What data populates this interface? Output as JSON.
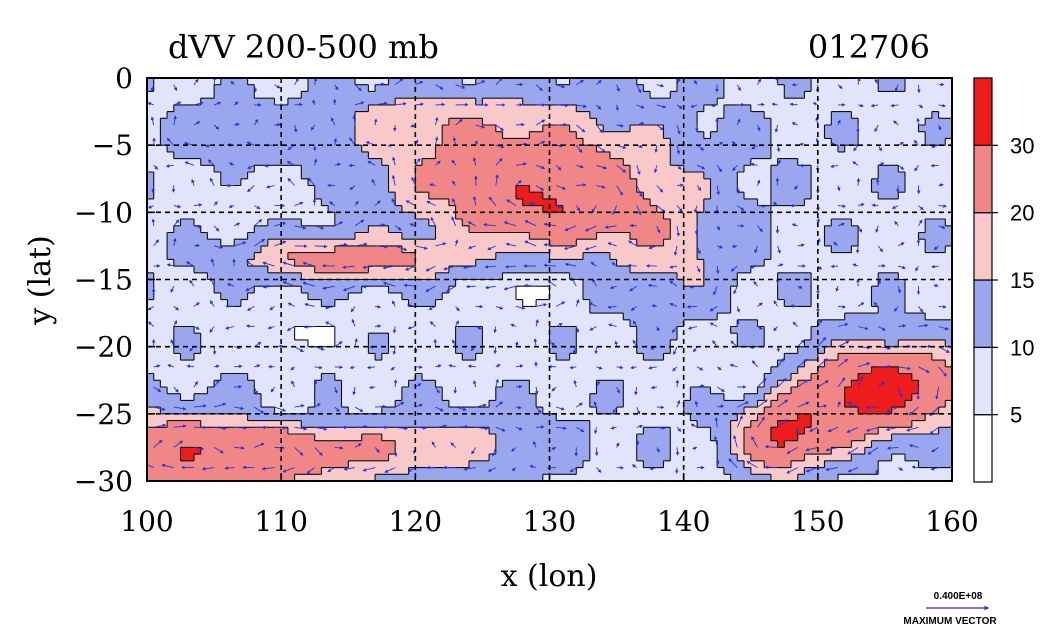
{
  "header": {
    "title": "dVV 200-500 mb",
    "date_code": "012706"
  },
  "chart_data": {
    "type": "heatmap",
    "xlabel": "x (lon)",
    "ylabel": "y (lat)",
    "xlim": [
      100,
      160
    ],
    "ylim": [
      -30,
      0
    ],
    "x_ticks": [
      100,
      110,
      120,
      130,
      140,
      150,
      160
    ],
    "y_ticks": [
      0,
      -5,
      -10,
      -15,
      -20,
      -25,
      -30
    ],
    "x_tick_labels": [
      "100",
      "110",
      "120",
      "130",
      "140",
      "150",
      "160"
    ],
    "y_tick_labels": [
      "0",
      "−5",
      "−10",
      "−15",
      "−20",
      "−25",
      "−30"
    ],
    "grid": true,
    "levels": [
      0,
      5,
      10,
      15,
      20,
      30,
      40
    ],
    "colorbar": {
      "labels": [
        "5",
        "10",
        "15",
        "20",
        "30"
      ],
      "colors": [
        "#ffffff",
        "#e2e4fb",
        "#9aa6ee",
        "#f9c8c8",
        "#f08686",
        "#ee1c1c"
      ]
    },
    "blobs": [
      {
        "lon": 128,
        "lat": -7,
        "rx": 11,
        "ry": 5,
        "v": 16
      },
      {
        "lon": 131,
        "lat": -10,
        "rx": 6,
        "ry": 2.5,
        "v": 10
      },
      {
        "lon": 139,
        "lat": -13,
        "rx": 5,
        "ry": 4,
        "v": 7
      },
      {
        "lon": 119,
        "lat": -3,
        "rx": 6,
        "ry": 2,
        "v": 5
      },
      {
        "lon": 106,
        "lat": -4,
        "rx": 4,
        "ry": 2,
        "v": 5
      },
      {
        "lon": 115,
        "lat": -13.5,
        "rx": 8,
        "ry": 1.6,
        "v": 14
      },
      {
        "lon": 104,
        "lat": -28,
        "rx": 14,
        "ry": 3,
        "v": 20
      },
      {
        "lon": 155,
        "lat": -23,
        "rx": 6,
        "ry": 3,
        "v": 25
      },
      {
        "lon": 149,
        "lat": -26,
        "rx": 5,
        "ry": 2.5,
        "v": 14
      },
      {
        "lon": 147,
        "lat": -27.5,
        "rx": 2.5,
        "ry": 2.5,
        "v": 12
      },
      {
        "lon": 123,
        "lat": -27,
        "rx": 8,
        "ry": 2,
        "v": 6
      },
      {
        "lon": 128,
        "lat": -16,
        "rx": 2.5,
        "ry": 1.5,
        "v": -7
      },
      {
        "lon": 111,
        "lat": -19,
        "rx": 4,
        "ry": 1.5,
        "v": -5
      },
      {
        "lon": 112,
        "lat": -25,
        "rx": 6,
        "ry": 1.5,
        "v": -4
      },
      {
        "lon": 145,
        "lat": -22,
        "rx": 4,
        "ry": 2,
        "v": -3
      },
      {
        "lon": 110,
        "lat": -9,
        "rx": 5,
        "ry": 1.5,
        "v": -3
      }
    ],
    "base_value": 9,
    "max_vector_value": "0.400E+08",
    "max_vector_label": "MAXIMUM VECTOR"
  }
}
